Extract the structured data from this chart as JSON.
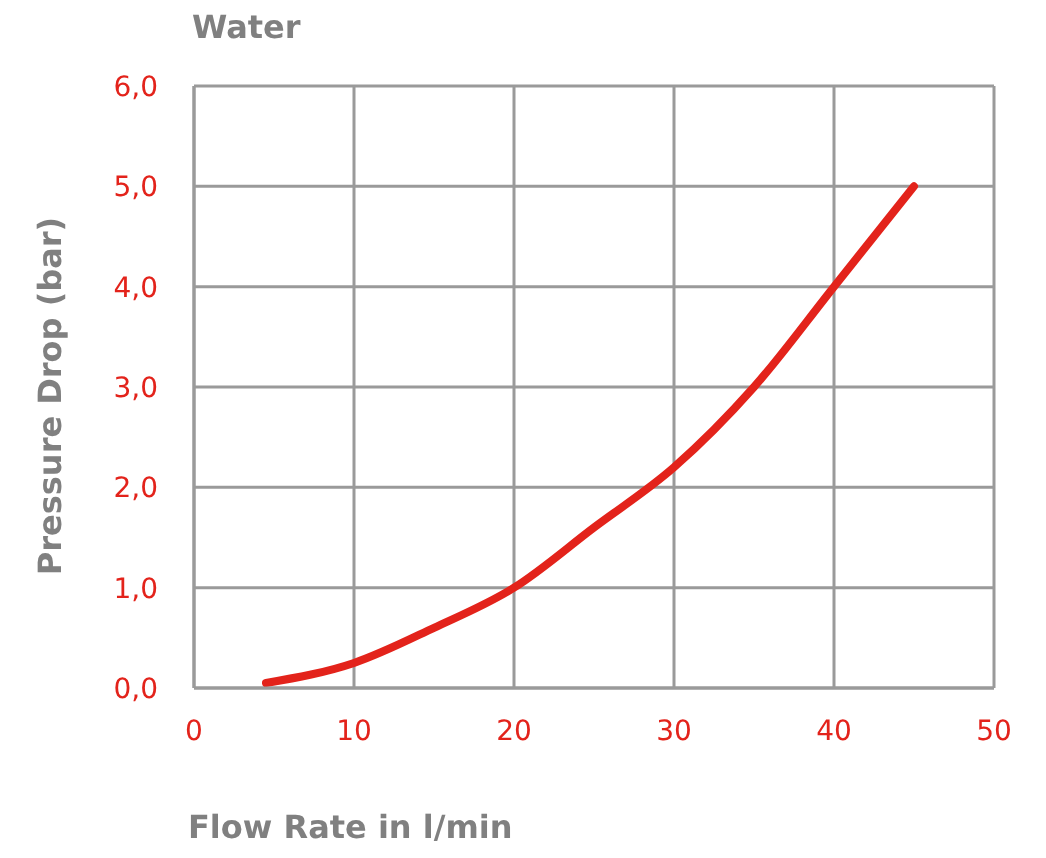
{
  "chart_data": {
    "type": "line",
    "title": "Water",
    "xlabel": "Flow Rate in l/min",
    "ylabel": "Pressure Drop (bar)",
    "x": [
      4.5,
      10,
      15,
      20,
      25,
      30,
      35,
      40,
      45
    ],
    "series": [
      {
        "color": "#e3231b",
        "values": [
          0.05,
          0.25,
          0.6,
          1.0,
          1.6,
          2.2,
          3.0,
          4.0,
          5.0
        ]
      }
    ],
    "xlim": [
      0,
      50
    ],
    "xticks": [
      0,
      10,
      20,
      30,
      40,
      50
    ],
    "ylim": [
      0,
      6
    ],
    "yticks": [
      {
        "value": 0,
        "label": "0,0"
      },
      {
        "value": 1,
        "label": "1,0"
      },
      {
        "value": 2,
        "label": "2,0"
      },
      {
        "value": 3,
        "label": "3,0"
      },
      {
        "value": 4,
        "label": "4,0"
      },
      {
        "value": 5,
        "label": "5,0"
      },
      {
        "value": 6,
        "label": "6,0"
      }
    ],
    "grid": true,
    "legend": false,
    "marker": "none",
    "line_style": "solid"
  }
}
